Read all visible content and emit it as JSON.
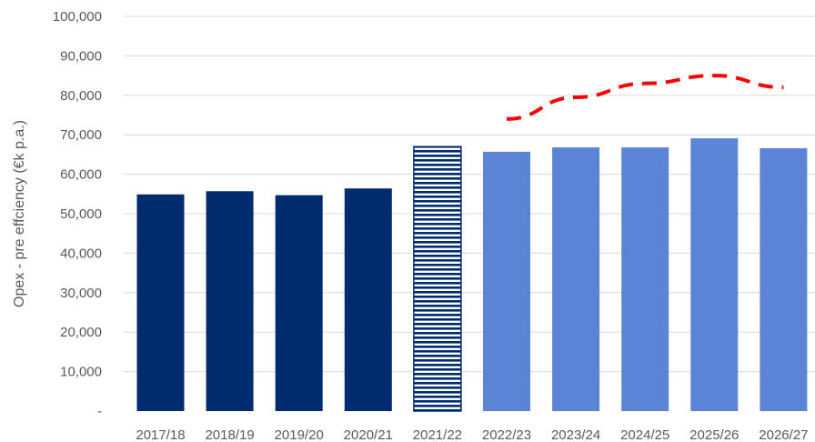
{
  "chart_data": {
    "type": "bar",
    "ylabel": "Opex - pre effciency (€k p.a.)",
    "ylim": [
      0,
      100000
    ],
    "y_ticks": [
      "-",
      "10,000",
      "20,000",
      "30,000",
      "40,000",
      "50,000",
      "60,000",
      "70,000",
      "80,000",
      "90,000",
      "100,000"
    ],
    "grid": true,
    "categories": [
      "2017/18",
      "2018/19",
      "2019/20",
      "2020/21",
      "2021/22",
      "2022/23",
      "2023/24",
      "2024/25",
      "2025/26",
      "2026/27"
    ],
    "values": [
      54900,
      55700,
      54700,
      56400,
      67000,
      65700,
      66800,
      66800,
      69100,
      66600
    ],
    "bar_styles": [
      "solid",
      "solid",
      "solid",
      "solid",
      "striped",
      "solid",
      "solid",
      "solid",
      "solid",
      "solid"
    ],
    "bar_colors": [
      "#002b6f",
      "#002b6f",
      "#002b6f",
      "#002b6f",
      "#002b6f",
      "#5b84d6",
      "#5b84d6",
      "#5b84d6",
      "#5b84d6",
      "#5b84d6"
    ],
    "line_series": {
      "style": "dashed",
      "color": "#ff0000",
      "points": [
        {
          "x": "2022/23",
          "y": 74000
        },
        {
          "x": "2023/24",
          "y": 79500
        },
        {
          "x": "2024/25",
          "y": 83000
        },
        {
          "x": "2025/26",
          "y": 85000
        },
        {
          "x": "2026/27",
          "y": 82000
        }
      ]
    }
  }
}
